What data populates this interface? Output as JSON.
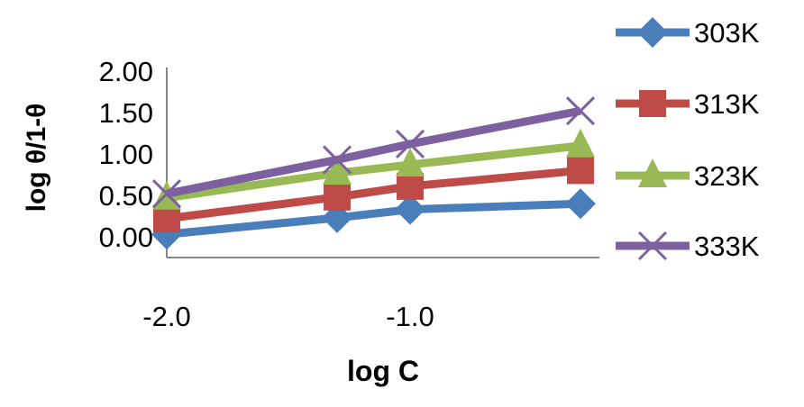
{
  "chart_data": {
    "type": "line",
    "title": "",
    "xlabel": "log C",
    "ylabel": "log θ/1-θ",
    "x": [
      -2.0,
      -1.3,
      -1.0,
      -0.3
    ],
    "xlim": [
      -2.0,
      -0.22
    ],
    "ylim": [
      -0.25,
      2.0
    ],
    "xticks": [
      "-2.0",
      "-1.0"
    ],
    "xtick_values": [
      -2.0,
      -1.0
    ],
    "yticks": [
      "0.00",
      "0.50",
      "1.00",
      "1.50",
      "2.00"
    ],
    "ytick_values": [
      0,
      0.5,
      1.0,
      1.5,
      2.0
    ],
    "grid": false,
    "legend_position": "right",
    "series": [
      {
        "name": "303K",
        "color": "#4a7ebb",
        "marker": "diamond",
        "values": [
          0.03,
          0.23,
          0.33,
          0.4
        ]
      },
      {
        "name": "313K",
        "color": "#be4b48",
        "marker": "square",
        "values": [
          0.22,
          0.48,
          0.61,
          0.8
        ]
      },
      {
        "name": "323K",
        "color": "#98b954",
        "marker": "triangle",
        "values": [
          0.47,
          0.77,
          0.87,
          1.1
        ]
      },
      {
        "name": "333K",
        "color": "#7d60a0",
        "marker": "x",
        "values": [
          0.52,
          0.93,
          1.12,
          1.52
        ]
      }
    ]
  }
}
